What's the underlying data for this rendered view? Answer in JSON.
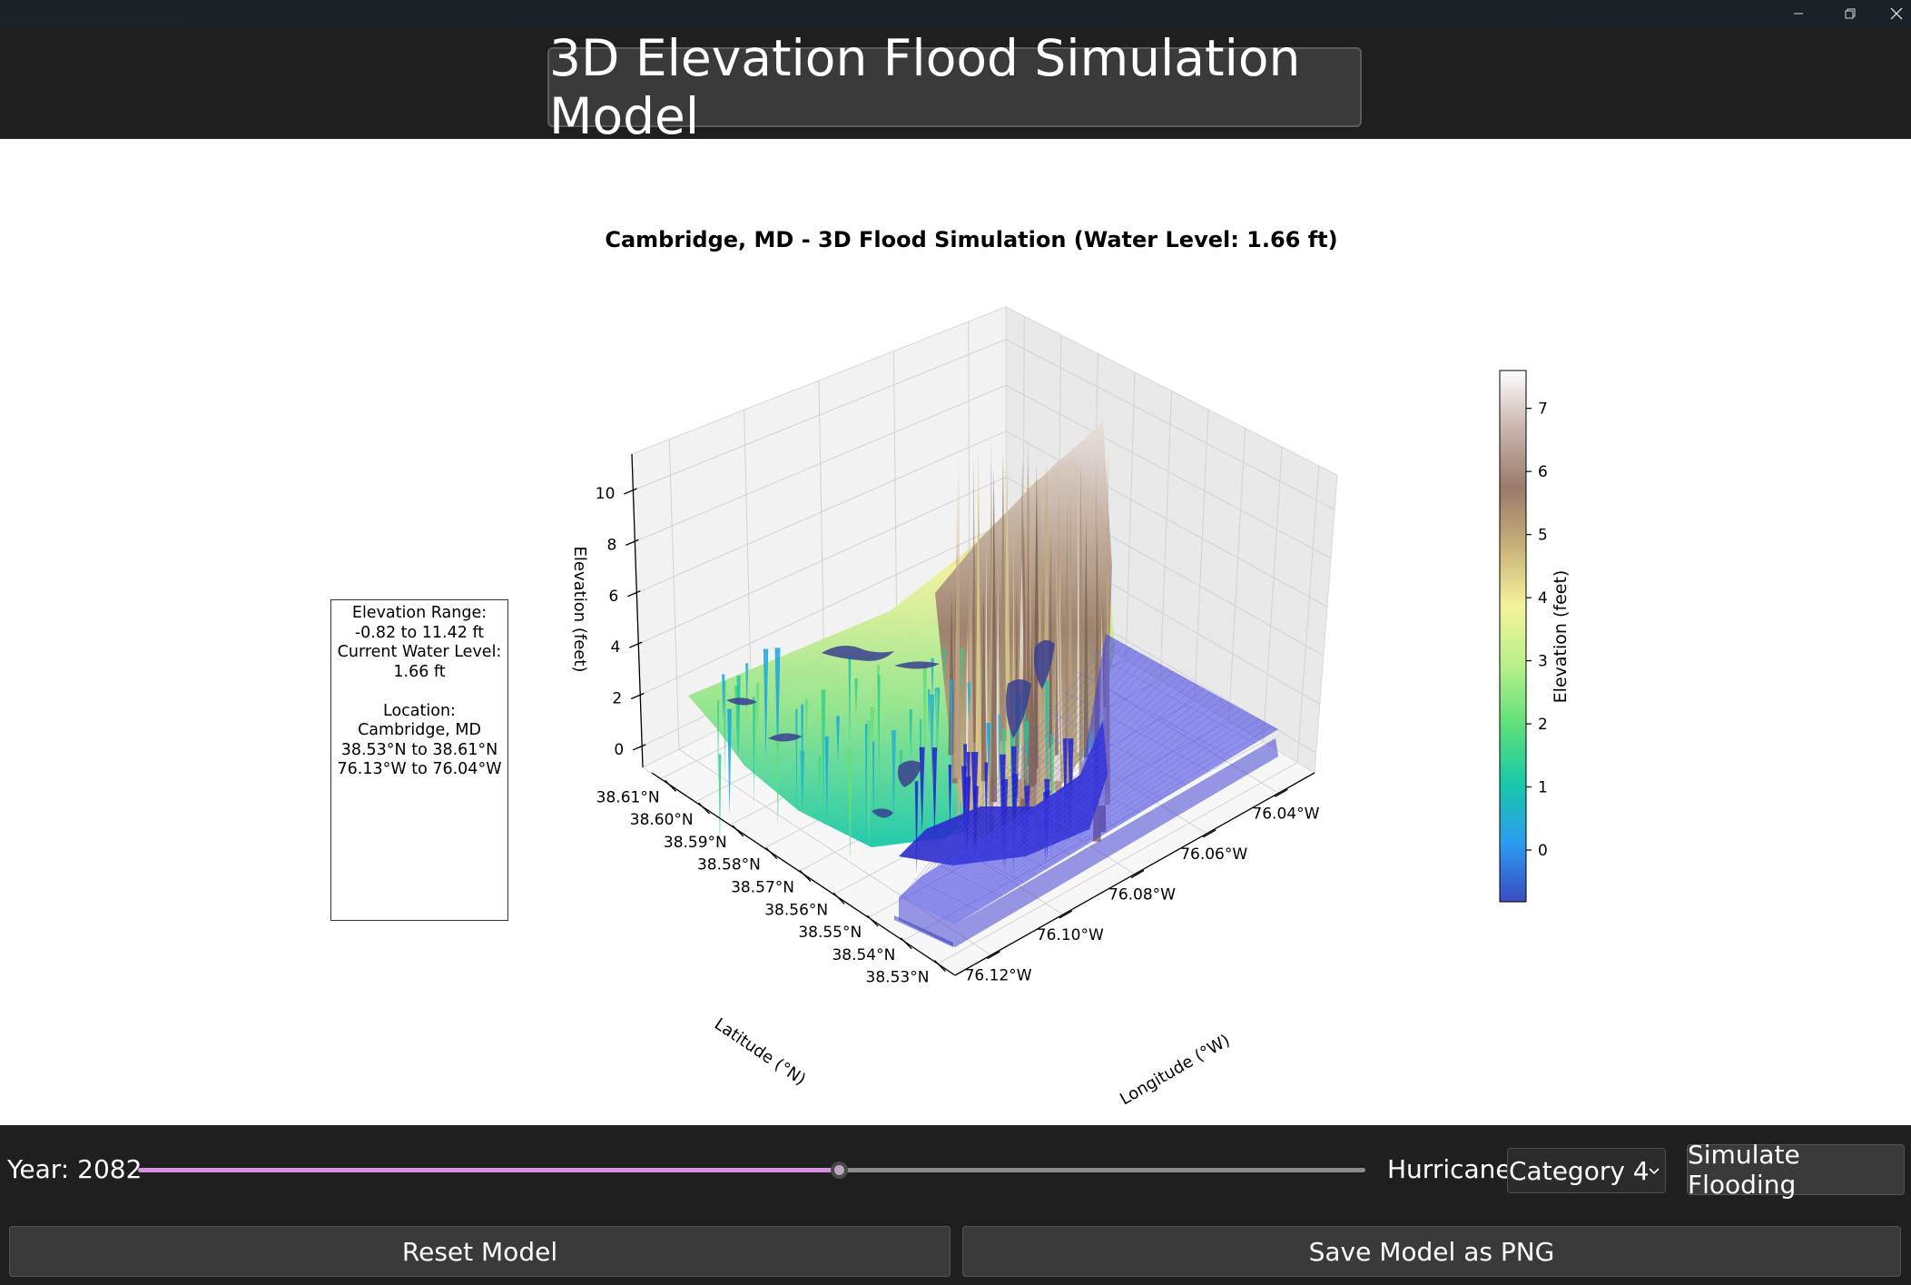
{
  "window": {
    "controls": [
      "minimize-icon",
      "restore-icon",
      "close-icon"
    ]
  },
  "header": {
    "title": "3D Elevation Flood Simulation Model"
  },
  "plot": {
    "title": "Cambridge, MD - 3D Flood Simulation (Water Level: 1.66 ft)",
    "info_lines": [
      "Elevation Range:",
      "-0.82 to 11.42 ft",
      "Current Water Level:",
      "1.66 ft",
      "",
      "Location:",
      "Cambridge, MD",
      "38.53°N to 38.61°N",
      "76.13°W to 76.04°W"
    ]
  },
  "chart_data": {
    "type": "surface3d",
    "title": "Cambridge, MD - 3D Flood Simulation (Water Level: 1.66 ft)",
    "xlabel": "Longitude (°W)",
    "ylabel": "Latitude (°N)",
    "zlabel": "Elevation (feet)",
    "x_ticks": [
      "76.12°W",
      "76.10°W",
      "76.08°W",
      "76.06°W",
      "76.04°W"
    ],
    "y_ticks": [
      "38.61°N",
      "38.60°N",
      "38.59°N",
      "38.58°N",
      "38.57°N",
      "38.56°N",
      "38.55°N",
      "38.54°N",
      "38.53°N"
    ],
    "z_ticks": [
      "0",
      "2",
      "4",
      "6",
      "8",
      "10"
    ],
    "zlim": [
      -0.82,
      11.42
    ],
    "water_level": 1.66,
    "colorbar": {
      "label": "Elevation (feet)",
      "ticks": [
        "0",
        "1",
        "2",
        "3",
        "4",
        "5",
        "6",
        "7"
      ],
      "range": [
        -0.82,
        7.6
      ],
      "colormap": "terrain",
      "colors": [
        "#3a4cc0",
        "#2b9bf0",
        "#18c8a8",
        "#5fe07a",
        "#b7f08a",
        "#f5f39a",
        "#c9b27a",
        "#9a7b6a",
        "#c8b3ad",
        "#ffffff"
      ]
    },
    "water_color": "#3a3ad8"
  },
  "controls": {
    "year_label": "Year: 2082",
    "year": 2082,
    "year_slider_fraction": 0.571,
    "hurricane_label": "Hurricane:",
    "hurricane_value": "Category 4",
    "simulate_label": "Simulate Flooding",
    "reset_label": "Reset Model",
    "save_label": "Save Model as PNG"
  }
}
